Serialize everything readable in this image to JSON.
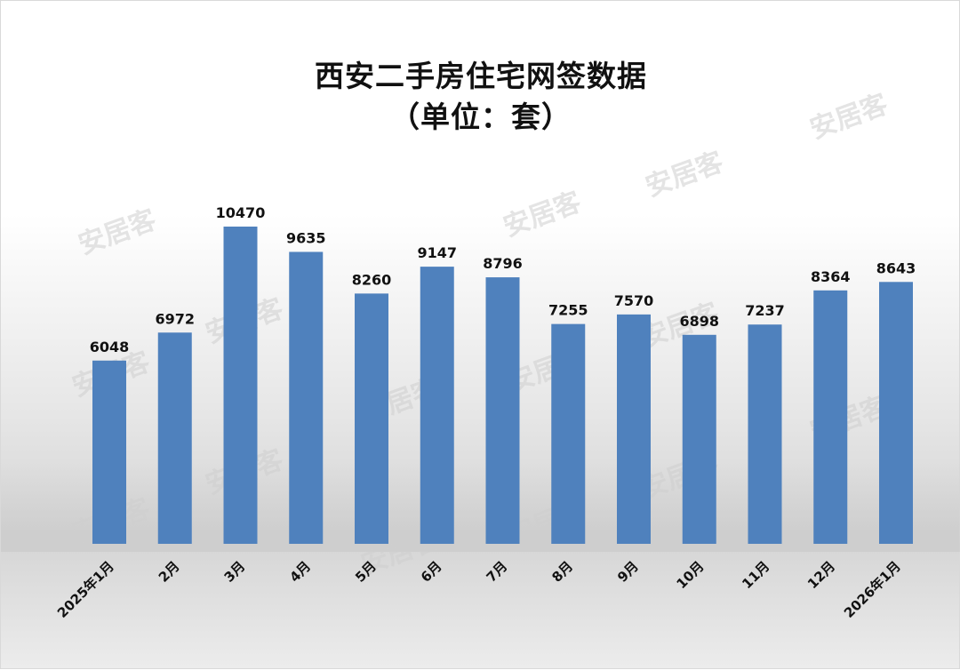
{
  "title_line1": "西安二手房住宅网签数据",
  "title_line2": "（单位：套）",
  "watermark_text": "安居客",
  "bar_color": "#4f81bd",
  "chart_data": {
    "type": "bar",
    "title": "西安二手房住宅网签数据（单位：套）",
    "categories": [
      "2025年1月",
      "2月",
      "3月",
      "4月",
      "5月",
      "6月",
      "7月",
      "8月",
      "9月",
      "10月",
      "11月",
      "12月",
      "2026年1月"
    ],
    "values": [
      6048,
      6972,
      10470,
      9635,
      8260,
      9147,
      8796,
      7255,
      7570,
      6898,
      7237,
      8364,
      8643
    ],
    "data_labels": true,
    "ylim": [
      0,
      10470
    ],
    "grid": false,
    "legend": "none"
  }
}
